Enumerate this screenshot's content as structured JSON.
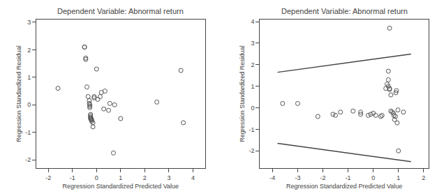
{
  "chart_data": [
    {
      "type": "scatter",
      "title": "Dependent Variable: Abnormal return",
      "xlabel": "Regression Standardized Predicted Value",
      "ylabel": "Regression Standardized Residual",
      "xlim": [
        -2.5,
        4.5
      ],
      "ylim": [
        -2.3,
        3.1
      ],
      "xticks": [
        -2,
        -1,
        0,
        1,
        2,
        3,
        4
      ],
      "yticks": [
        -2,
        -1,
        0,
        1,
        2,
        3
      ],
      "grid": false,
      "series": [
        {
          "type": "scatter",
          "color": "#555555",
          "marker": "circle-open",
          "x": [
            -1.6,
            -0.5,
            -0.5,
            -0.45,
            -0.45,
            -0.4,
            -0.35,
            -0.3,
            -0.3,
            -0.28,
            -0.28,
            -0.28,
            -0.25,
            -0.25,
            -0.25,
            -0.25,
            -0.22,
            -0.22,
            -0.2,
            -0.2,
            -0.15,
            -0.15,
            -0.1,
            -0.1,
            0.0,
            0.05,
            0.15,
            0.2,
            0.3,
            0.35,
            0.5,
            0.55,
            0.7,
            0.75,
            1.0,
            2.5,
            3.5,
            3.6
          ],
          "values": [
            0.6,
            2.1,
            2.1,
            1.7,
            1.65,
            0.65,
            0.3,
            0.15,
            0.05,
            0.0,
            -0.05,
            -0.1,
            -0.35,
            -0.4,
            -0.45,
            -0.5,
            -0.5,
            -0.55,
            -0.55,
            -0.6,
            -0.65,
            -0.8,
            0.25,
            0.3,
            1.3,
            0.2,
            0.3,
            0.45,
            -0.15,
            0.5,
            -0.2,
            0.05,
            -1.75,
            0.0,
            -0.5,
            0.1,
            1.25,
            -0.65
          ]
        }
      ]
    },
    {
      "type": "scatter",
      "title": "Dependent Variable: Abnormal return",
      "xlabel": "Regression Standardized Predicted Value",
      "ylabel": "Regression Standardized Residual",
      "xlim": [
        -4.5,
        2.2
      ],
      "ylim": [
        -2.8,
        4.1
      ],
      "xticks": [
        -4,
        -3,
        -2,
        -1,
        0,
        1,
        2
      ],
      "yticks": [
        -2,
        -1,
        0,
        1,
        2,
        3,
        4
      ],
      "grid": false,
      "series": [
        {
          "type": "scatter",
          "color": "#555555",
          "marker": "circle-open",
          "x": [
            -3.6,
            -3.0,
            -2.2,
            -1.6,
            -1.5,
            -1.3,
            -0.8,
            -0.5,
            -0.5,
            -0.2,
            -0.1,
            0.0,
            0.1,
            0.3,
            0.35,
            0.5,
            0.55,
            0.6,
            0.6,
            0.6,
            0.65,
            0.65,
            0.7,
            0.7,
            0.75,
            0.8,
            0.82,
            0.85,
            0.88,
            0.9,
            0.92,
            0.95,
            0.98,
            1.0,
            1.2
          ],
          "values": [
            0.2,
            0.2,
            -0.4,
            -0.3,
            -0.35,
            -0.2,
            -0.15,
            -0.2,
            -0.3,
            -0.35,
            -0.3,
            -0.25,
            -0.35,
            -0.4,
            -0.35,
            0.9,
            1.1,
            1.7,
            1.3,
            1.0,
            0.9,
            0.85,
            0.6,
            -0.15,
            -0.2,
            -0.25,
            -0.35,
            -0.55,
            -0.4,
            0.7,
            0.8,
            -0.7,
            -0.1,
            -2.0,
            -0.2
          ]
        },
        {
          "type": "scatter",
          "color": "#555555",
          "marker": "circle-open",
          "x": [
            0.65
          ],
          "values": [
            3.7
          ]
        },
        {
          "type": "line",
          "color": "#444444",
          "line_style": "solid",
          "x": [
            -3.8,
            1.5
          ],
          "values": [
            1.65,
            2.5
          ]
        },
        {
          "type": "line",
          "color": "#444444",
          "line_style": "solid",
          "x": [
            -3.8,
            1.5
          ],
          "values": [
            -1.65,
            -2.5
          ]
        }
      ]
    }
  ]
}
